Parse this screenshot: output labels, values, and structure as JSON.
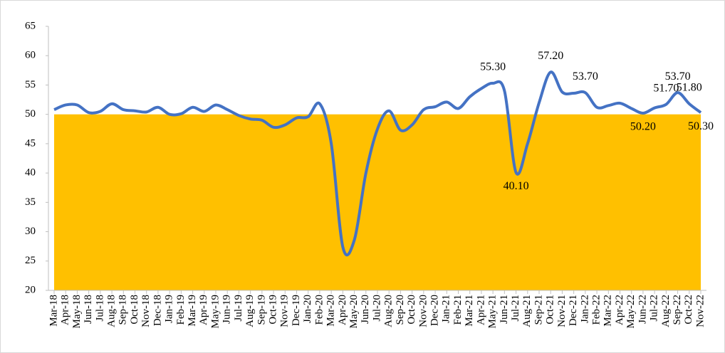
{
  "chart_data": {
    "type": "line",
    "categories": [
      "Mar-18",
      "Apr-18",
      "May-18",
      "Jun-18",
      "Jul-18",
      "Aug-18",
      "Sep-18",
      "Oct-18",
      "Nov-18",
      "Dec-18",
      "Jan-19",
      "Feb-19",
      "Mar-19",
      "Apr-19",
      "May-19",
      "Jun-19",
      "Jul-19",
      "Aug-19",
      "Sep-19",
      "Oct-19",
      "Nov-19",
      "Dec-19",
      "Jan-20",
      "Feb-20",
      "Mar-20",
      "Apr-20",
      "May-20",
      "Jun-20",
      "Jul-20",
      "Aug-20",
      "Sep-20",
      "Oct-20",
      "Nov-20",
      "Dec-20",
      "Jan-21",
      "Feb-21",
      "Mar-21",
      "Apr-21",
      "May-21",
      "Jun-21",
      "Jul-21",
      "Aug-21",
      "Sep-21",
      "Oct-21",
      "Nov-21",
      "Dec-21",
      "Jan-22",
      "Feb-22",
      "Mar-22",
      "Apr-22",
      "May-22",
      "Jun-22",
      "Jul-22",
      "Aug-22",
      "Sep-22",
      "Oct-22",
      "Nov-22"
    ],
    "series": [
      {
        "color": "#4472c4",
        "values": [
          50.8,
          51.6,
          51.6,
          50.3,
          50.5,
          51.8,
          50.8,
          50.6,
          50.4,
          51.2,
          50.0,
          50.1,
          51.2,
          50.5,
          51.6,
          50.8,
          49.8,
          49.2,
          49.0,
          47.8,
          48.2,
          49.4,
          49.6,
          51.8,
          45.0,
          27.4,
          28.6,
          40.0,
          47.5,
          50.6,
          47.3,
          48.2,
          50.8,
          51.3,
          52.1,
          51.0,
          53.0,
          54.4,
          55.3,
          54.0,
          40.1,
          45.0,
          52.0,
          57.2,
          53.8,
          53.6,
          53.7,
          51.2,
          51.5,
          51.9,
          51.0,
          50.2,
          51.1,
          51.7,
          53.7,
          51.8,
          50.3
        ],
        "value_labels": [
          null,
          null,
          null,
          null,
          null,
          null,
          null,
          null,
          null,
          null,
          null,
          null,
          null,
          null,
          null,
          null,
          null,
          null,
          null,
          null,
          null,
          null,
          null,
          null,
          null,
          null,
          null,
          null,
          null,
          null,
          null,
          null,
          null,
          null,
          null,
          null,
          null,
          null,
          "55.30",
          null,
          "40.10",
          null,
          null,
          "57.20",
          null,
          null,
          "53.70",
          null,
          null,
          null,
          null,
          "50.20",
          null,
          "51.70",
          "53.70",
          "51.80",
          "50.30"
        ]
      }
    ],
    "threshold": 50,
    "threshold_color": "#ffc000",
    "ylim": [
      20,
      65
    ],
    "yticks": [
      20,
      25,
      30,
      35,
      40,
      45,
      50,
      55,
      60,
      65
    ]
  }
}
